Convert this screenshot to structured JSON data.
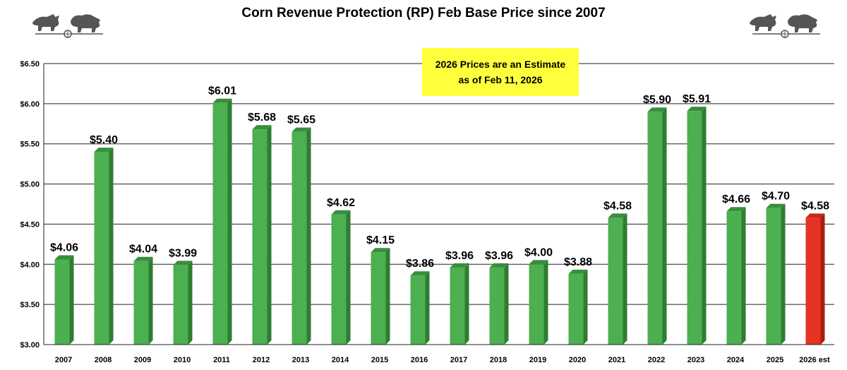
{
  "chart_data": {
    "type": "bar",
    "title": "Corn Revenue Protection (RP) Feb Base Price since 2007",
    "xlabel": "",
    "ylabel": "",
    "categories": [
      "2007",
      "2008",
      "2009",
      "2010",
      "2011",
      "2012",
      "2013",
      "2014",
      "2015",
      "2016",
      "2017",
      "2018",
      "2019",
      "2020",
      "2021",
      "2022",
      "2023",
      "2024",
      "2025",
      "2026 est"
    ],
    "values": [
      4.06,
      5.4,
      4.04,
      3.99,
      6.01,
      5.68,
      5.65,
      4.62,
      4.15,
      3.86,
      3.96,
      3.96,
      4.0,
      3.88,
      4.58,
      5.9,
      5.91,
      4.66,
      4.7,
      4.58
    ],
    "data_labels": [
      "$4.06",
      "$5.40",
      "$4.04",
      "$3.99",
      "$6.01",
      "$5.68",
      "$5.65",
      "$4.62",
      "$4.15",
      "$3.86",
      "$3.96",
      "$3.96",
      "$4.00",
      "$3.88",
      "$4.58",
      "$5.90",
      "$5.91",
      "$4.66",
      "$4.70",
      "$4.58"
    ],
    "ylim": [
      3.0,
      6.5
    ],
    "y_ticks": [
      3.0,
      3.5,
      4.0,
      4.5,
      5.0,
      5.5,
      6.0,
      6.5
    ],
    "y_tick_labels": [
      "$3.00",
      "$3.50",
      "$4.00",
      "$4.50",
      "$5.00",
      "$5.50",
      "$6.00",
      "$6.50"
    ],
    "grid": true,
    "colors": {
      "actual": "#4caf50",
      "estimate": "#e53323"
    },
    "estimate_category": "2026 est",
    "annotation": "2026 Prices are an Estimate as of Feb 11, 2026"
  },
  "logos": [
    "bull-bear-logo",
    "bull-bear-logo"
  ]
}
